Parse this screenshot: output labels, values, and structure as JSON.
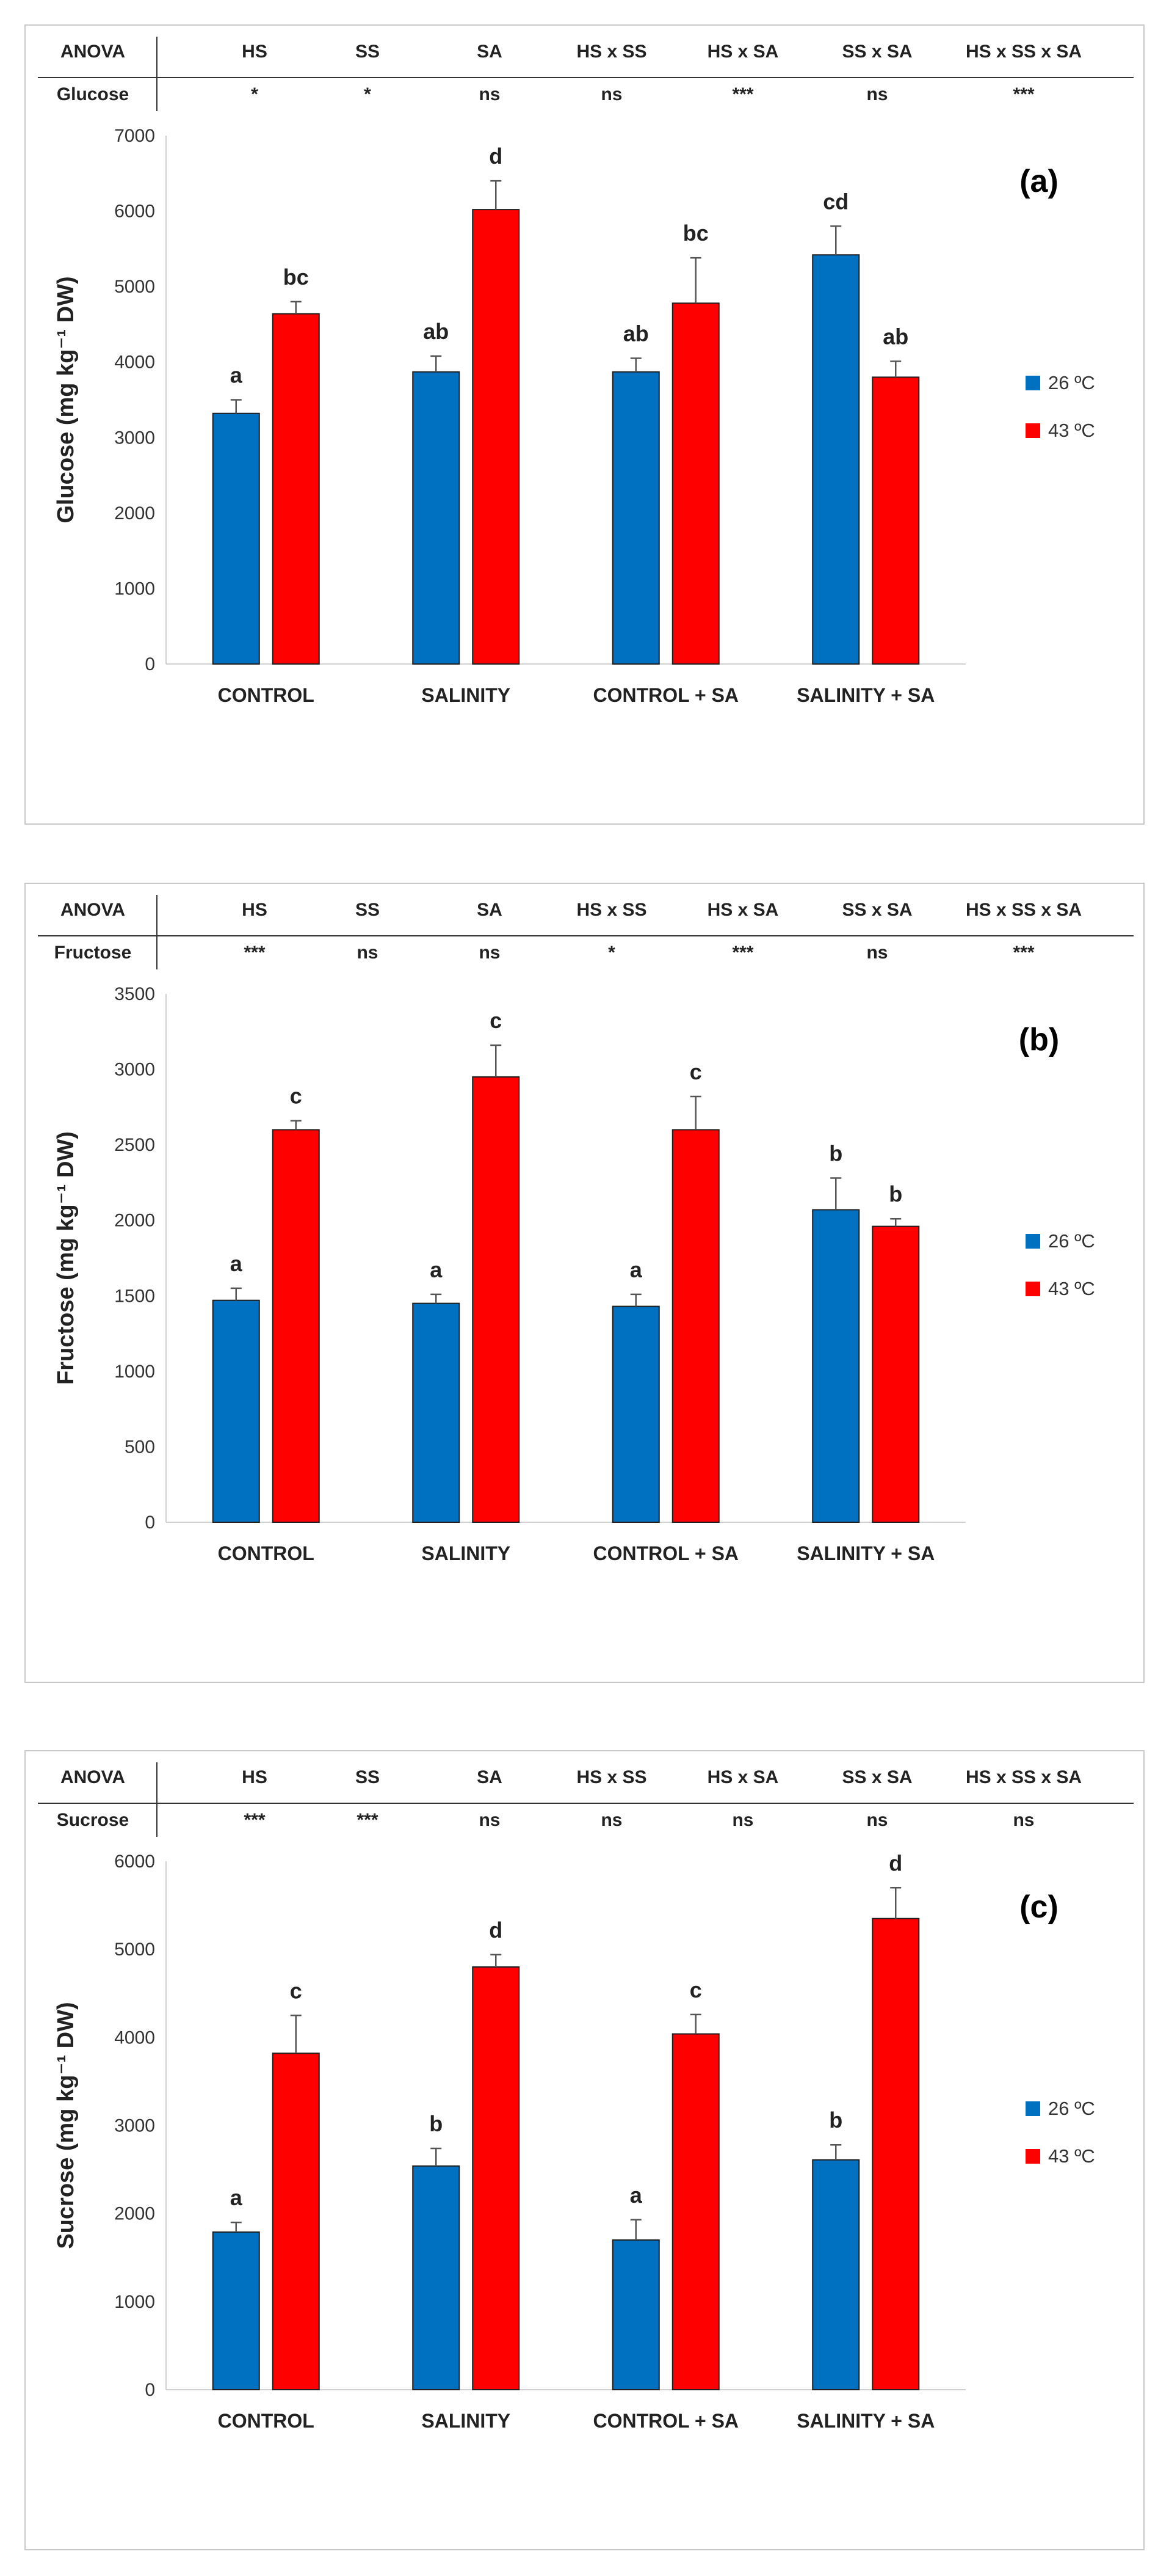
{
  "legend": [
    {
      "name": "26 ºC",
      "color": "#0070C0"
    },
    {
      "name": "43 ºC",
      "color": "#FF0000"
    }
  ],
  "anova_headers": [
    "ANOVA",
    "HS",
    "SS",
    "SA",
    "HS x SS",
    "HS x SA",
    "SS x SA",
    "HS x SS x SA"
  ],
  "chart_data": [
    {
      "type": "bar",
      "panel_label": "(a)",
      "ylabel": "Glucose (mg kg⁻¹ DW)",
      "ylim": [
        0,
        7000
      ],
      "ytick_step": 1000,
      "categories": [
        "CONTROL",
        "SALINITY",
        "CONTROL + SA",
        "SALINITY + SA"
      ],
      "anova_row": [
        "Glucose",
        "*",
        "*",
        "ns",
        "ns",
        "***",
        "ns",
        "***"
      ],
      "series": [
        {
          "name": "26 ºC",
          "values": [
            3320,
            3870,
            3870,
            5420
          ],
          "errors": [
            180,
            210,
            180,
            380
          ],
          "letters": [
            "a",
            "ab",
            "ab",
            "cd"
          ]
        },
        {
          "name": "43 ºC",
          "values": [
            4640,
            6020,
            4780,
            3800
          ],
          "errors": [
            160,
            380,
            600,
            210
          ],
          "letters": [
            "bc",
            "d",
            "bc",
            "ab"
          ]
        }
      ]
    },
    {
      "type": "bar",
      "panel_label": "(b)",
      "ylabel": "Fructose (mg kg⁻¹ DW)",
      "ylim": [
        0,
        3500
      ],
      "ytick_step": 500,
      "categories": [
        "CONTROL",
        "SALINITY",
        "CONTROL + SA",
        "SALINITY + SA"
      ],
      "anova_row": [
        "Fructose",
        "***",
        "ns",
        "ns",
        "*",
        "***",
        "ns",
        "***"
      ],
      "series": [
        {
          "name": "26 ºC",
          "values": [
            1470,
            1450,
            1430,
            2070
          ],
          "errors": [
            80,
            60,
            80,
            210
          ],
          "letters": [
            "a",
            "a",
            "a",
            "b"
          ]
        },
        {
          "name": "43 ºC",
          "values": [
            2600,
            2950,
            2600,
            1960
          ],
          "errors": [
            60,
            210,
            220,
            50
          ],
          "letters": [
            "c",
            "c",
            "c",
            "b"
          ]
        }
      ]
    },
    {
      "type": "bar",
      "panel_label": "(c)",
      "ylabel": "Sucrose (mg kg⁻¹ DW)",
      "ylim": [
        0,
        6000
      ],
      "ytick_step": 1000,
      "categories": [
        "CONTROL",
        "SALINITY",
        "CONTROL + SA",
        "SALINITY + SA"
      ],
      "anova_row": [
        "Sucrose",
        "***",
        "***",
        "ns",
        "ns",
        "ns",
        "ns",
        "ns"
      ],
      "series": [
        {
          "name": "26 ºC",
          "values": [
            1790,
            2540,
            1700,
            2610
          ],
          "errors": [
            110,
            200,
            230,
            170
          ],
          "letters": [
            "a",
            "b",
            "a",
            "b"
          ]
        },
        {
          "name": "43 ºC",
          "values": [
            3820,
            4800,
            4040,
            5350
          ],
          "errors": [
            430,
            140,
            220,
            350
          ],
          "letters": [
            "c",
            "d",
            "c",
            "d"
          ]
        }
      ]
    }
  ]
}
